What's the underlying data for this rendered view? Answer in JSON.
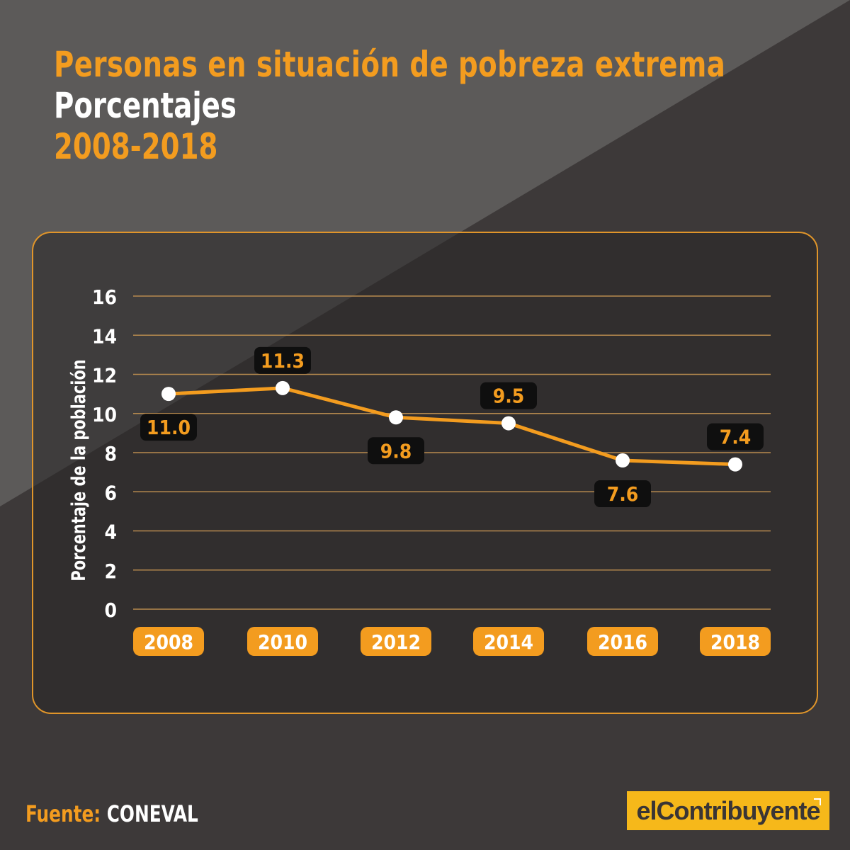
{
  "title": {
    "line1": "Personas en situación de pobreza extrema",
    "line2": "Porcentajes",
    "line3": "2008-2018"
  },
  "source": {
    "label": "Fuente:",
    "value": "CONEVAL"
  },
  "logo": {
    "text": "elContribuyente"
  },
  "colors": {
    "background": "#3d3939",
    "accent": "#f39c1f",
    "panel_border": "#e0952a",
    "label_bg": "#0f0f0f",
    "logo_bg": "#f6b81a"
  },
  "chart_data": {
    "type": "line",
    "title": "Personas en situación de pobreza extrema",
    "subtitle": "Porcentajes",
    "xlabel": "",
    "ylabel": "Porcentaje de la población",
    "categories": [
      "2008",
      "2010",
      "2012",
      "2014",
      "2016",
      "2018"
    ],
    "series": [
      {
        "values": [
          11.0,
          11.3,
          9.8,
          9.5,
          7.6,
          7.4
        ]
      }
    ],
    "data_labels": [
      "11.0",
      "11.3",
      "9.8",
      "9.5",
      "7.6",
      "7.4"
    ],
    "label_positions": [
      "below",
      "above",
      "below",
      "above",
      "below",
      "above"
    ],
    "ylim": [
      0,
      16
    ],
    "yticks": [
      0,
      2,
      4,
      6,
      8,
      10,
      12,
      14,
      16
    ],
    "grid": true
  }
}
